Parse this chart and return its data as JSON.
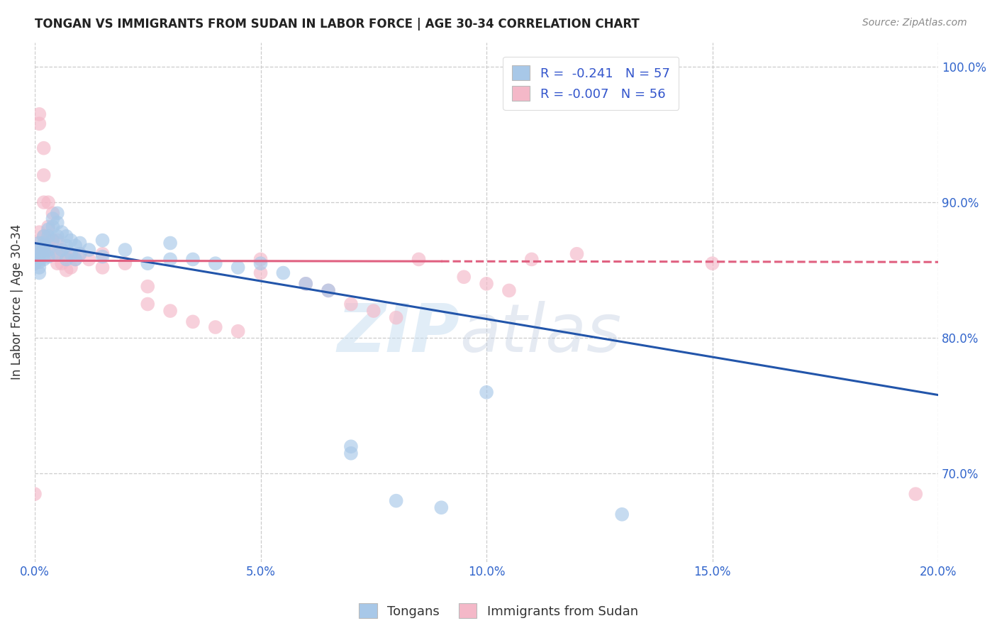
{
  "title": "TONGAN VS IMMIGRANTS FROM SUDAN IN LABOR FORCE | AGE 30-34 CORRELATION CHART",
  "source": "Source: ZipAtlas.com",
  "ylabel": "In Labor Force | Age 30-34",
  "x_min": 0.0,
  "x_max": 0.2,
  "y_min": 0.635,
  "y_max": 1.018,
  "yticks": [
    0.7,
    0.8,
    0.9,
    1.0
  ],
  "ytick_labels": [
    "70.0%",
    "80.0%",
    "90.0%",
    "100.0%"
  ],
  "xticks": [
    0.0,
    0.05,
    0.1,
    0.15,
    0.2
  ],
  "xtick_labels": [
    "0.0%",
    "5.0%",
    "10.0%",
    "15.0%",
    "20.0%"
  ],
  "blue_color": "#a8c8e8",
  "pink_color": "#f4b8c8",
  "blue_line_color": "#2255aa",
  "pink_line_color": "#e06080",
  "r_blue": -0.241,
  "n_blue": 57,
  "r_pink": -0.007,
  "n_pink": 56,
  "legend_r_color": "#3355cc",
  "watermark_text": "ZIP",
  "watermark_text2": "atlas",
  "blue_points_x": [
    0.0,
    0.0,
    0.001,
    0.001,
    0.001,
    0.001,
    0.001,
    0.001,
    0.001,
    0.002,
    0.002,
    0.002,
    0.002,
    0.002,
    0.002,
    0.003,
    0.003,
    0.003,
    0.003,
    0.004,
    0.004,
    0.004,
    0.005,
    0.005,
    0.005,
    0.005,
    0.006,
    0.006,
    0.007,
    0.007,
    0.007,
    0.008,
    0.008,
    0.009,
    0.009,
    0.01,
    0.01,
    0.012,
    0.015,
    0.015,
    0.02,
    0.025,
    0.03,
    0.03,
    0.035,
    0.04,
    0.045,
    0.05,
    0.055,
    0.06,
    0.065,
    0.07,
    0.07,
    0.08,
    0.09,
    0.1,
    0.13
  ],
  "blue_points_y": [
    0.86,
    0.855,
    0.87,
    0.865,
    0.858,
    0.852,
    0.848,
    0.862,
    0.856,
    0.875,
    0.868,
    0.862,
    0.858,
    0.87,
    0.865,
    0.88,
    0.875,
    0.865,
    0.86,
    0.888,
    0.882,
    0.872,
    0.892,
    0.885,
    0.875,
    0.862,
    0.878,
    0.865,
    0.875,
    0.868,
    0.858,
    0.872,
    0.862,
    0.868,
    0.858,
    0.87,
    0.862,
    0.865,
    0.872,
    0.86,
    0.865,
    0.855,
    0.87,
    0.858,
    0.858,
    0.855,
    0.852,
    0.855,
    0.848,
    0.84,
    0.835,
    0.72,
    0.715,
    0.68,
    0.675,
    0.76,
    0.67
  ],
  "pink_points_x": [
    0.0,
    0.0,
    0.0,
    0.001,
    0.001,
    0.001,
    0.001,
    0.001,
    0.002,
    0.002,
    0.002,
    0.002,
    0.002,
    0.003,
    0.003,
    0.003,
    0.003,
    0.004,
    0.004,
    0.004,
    0.005,
    0.005,
    0.005,
    0.006,
    0.006,
    0.007,
    0.007,
    0.008,
    0.008,
    0.009,
    0.01,
    0.012,
    0.015,
    0.015,
    0.02,
    0.025,
    0.025,
    0.03,
    0.035,
    0.04,
    0.045,
    0.05,
    0.05,
    0.06,
    0.065,
    0.07,
    0.075,
    0.08,
    0.085,
    0.095,
    0.1,
    0.105,
    0.11,
    0.12,
    0.15,
    0.195
  ],
  "pink_points_y": [
    0.685,
    0.862,
    0.855,
    0.965,
    0.958,
    0.878,
    0.87,
    0.862,
    0.94,
    0.92,
    0.9,
    0.875,
    0.865,
    0.9,
    0.882,
    0.872,
    0.862,
    0.892,
    0.872,
    0.862,
    0.872,
    0.862,
    0.855,
    0.865,
    0.855,
    0.86,
    0.85,
    0.862,
    0.852,
    0.858,
    0.862,
    0.858,
    0.862,
    0.852,
    0.855,
    0.838,
    0.825,
    0.82,
    0.812,
    0.808,
    0.805,
    0.858,
    0.848,
    0.84,
    0.835,
    0.825,
    0.82,
    0.815,
    0.858,
    0.845,
    0.84,
    0.835,
    0.858,
    0.862,
    0.855,
    0.685
  ],
  "blue_trend_x0": 0.0,
  "blue_trend_y0": 0.87,
  "blue_trend_x1": 0.2,
  "blue_trend_y1": 0.758,
  "pink_trend_x0": 0.0,
  "pink_trend_y0": 0.857,
  "pink_trend_x1": 0.2,
  "pink_trend_y1": 0.856
}
